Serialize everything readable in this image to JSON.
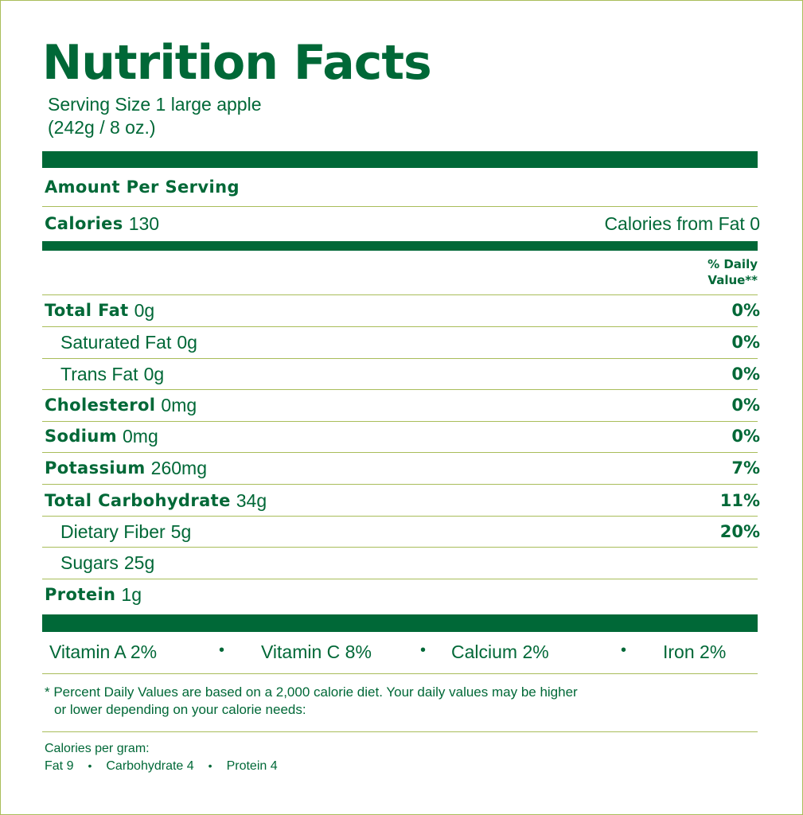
{
  "title": "Nutrition Facts",
  "serving": {
    "line1": "Serving Size 1 large apple",
    "line2": "(242g / 8 oz.)"
  },
  "amount_per_serving": "Amount Per Serving",
  "calories": {
    "label": "Calories",
    "value": "130",
    "from_fat": "Calories from Fat 0"
  },
  "daily_value_header": {
    "line1": "% Daily",
    "line2": "Value**"
  },
  "nutrients": [
    {
      "label": "Total Fat",
      "amount": "0g",
      "dv": "0%"
    },
    {
      "label": "Saturated Fat",
      "amount": "0g",
      "dv": "0%"
    },
    {
      "label": "Trans Fat",
      "amount": "0g",
      "dv": "0%"
    },
    {
      "label": "Cholesterol",
      "amount": "0mg",
      "dv": "0%"
    },
    {
      "label": "Sodium",
      "amount": "0mg",
      "dv": "0%"
    },
    {
      "label": "Potassium",
      "amount": "260mg",
      "dv": "7%"
    },
    {
      "label": "Total Carbohydrate",
      "amount": "34g",
      "dv": "11%"
    },
    {
      "label": "Dietary Fiber",
      "amount": "5g",
      "dv": "20%"
    },
    {
      "label": "Sugars",
      "amount": "25g",
      "dv": ""
    },
    {
      "label": "Protein",
      "amount": "1g",
      "dv": ""
    }
  ],
  "vitamins": {
    "vitamin_a": "Vitamin A 2%",
    "vitamin_c": "Vitamin C 8%",
    "calcium": "Calcium 2%",
    "iron": "Iron 2%",
    "separator": "•"
  },
  "footnote": {
    "line1": "* Percent Daily Values are based on a 2,000  calorie diet. Your daily values may be higher",
    "line2": "or lower depending on your calorie needs:"
  },
  "calories_per_gram": {
    "heading": "Calories per gram:",
    "fat": "Fat 9",
    "carbohydrate": "Carbohydrate 4",
    "protein": "Protein 4",
    "separator": "•"
  },
  "colors": {
    "primary_green": "#006837",
    "rule_green": "#a9bd5a"
  }
}
